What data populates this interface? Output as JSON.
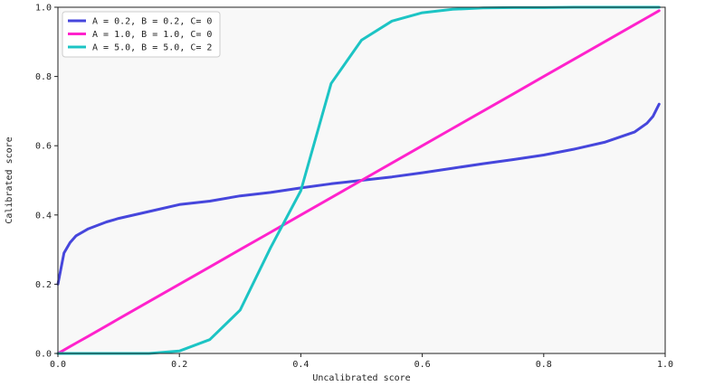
{
  "chart_data": {
    "type": "line",
    "title": "",
    "xlabel": "Uncalibrated score",
    "ylabel": "Calibrated score",
    "xlim": [
      0.0,
      1.0
    ],
    "ylim": [
      0.0,
      1.0
    ],
    "xticks": [
      "0.0",
      "0.2",
      "0.4",
      "0.6",
      "0.8",
      "1.0"
    ],
    "yticks": [
      "0.0",
      "0.2",
      "0.4",
      "0.6",
      "0.8",
      "1.0"
    ],
    "grid": false,
    "legend_position": "top-left",
    "background": "#f8f8f8",
    "x": [
      0.0,
      0.01,
      0.02,
      0.03,
      0.05,
      0.08,
      0.1,
      0.15,
      0.2,
      0.25,
      0.3,
      0.35,
      0.4,
      0.45,
      0.5,
      0.55,
      0.6,
      0.65,
      0.7,
      0.75,
      0.8,
      0.85,
      0.9,
      0.95,
      0.97,
      0.98,
      0.99
    ],
    "series": [
      {
        "name": "A = 0.2, B = 0.2, C= 0",
        "color": "#4646dc",
        "values": [
          0.2,
          0.29,
          0.32,
          0.34,
          0.36,
          0.38,
          0.39,
          0.41,
          0.43,
          0.44,
          0.455,
          0.465,
          0.478,
          0.49,
          0.5,
          0.51,
          0.522,
          0.535,
          0.548,
          0.56,
          0.573,
          0.59,
          0.61,
          0.64,
          0.665,
          0.685,
          0.72
        ]
      },
      {
        "name": "A = 1.0, B = 1.0, C= 0",
        "color": "#ff22cc",
        "values": [
          0.0,
          0.01,
          0.02,
          0.03,
          0.05,
          0.08,
          0.1,
          0.15,
          0.2,
          0.25,
          0.3,
          0.35,
          0.4,
          0.45,
          0.5,
          0.55,
          0.6,
          0.65,
          0.7,
          0.75,
          0.8,
          0.85,
          0.9,
          0.95,
          0.97,
          0.98,
          0.99
        ]
      },
      {
        "name": "A = 5.0, B = 5.0, C= 2",
        "color": "#1cc4c4",
        "values": [
          0.0,
          0.0,
          0.0,
          0.0,
          0.0,
          0.0,
          0.0,
          0.0,
          0.007,
          0.04,
          0.125,
          0.305,
          0.47,
          0.78,
          0.905,
          0.96,
          0.984,
          0.994,
          0.998,
          0.999,
          0.999,
          1.0,
          1.0,
          1.0,
          1.0,
          1.0,
          1.0
        ]
      }
    ]
  }
}
